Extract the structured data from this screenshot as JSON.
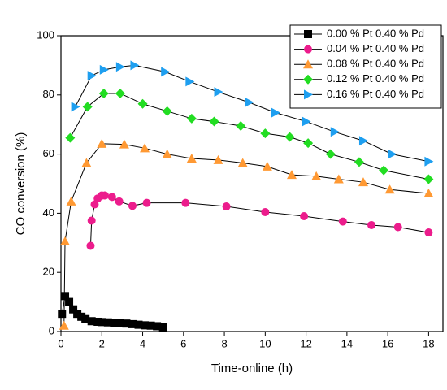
{
  "chart_data": {
    "type": "line",
    "xlabel": "Time-online (h)",
    "ylabel": "CO conversion (%)",
    "xlim": [
      0,
      18.7
    ],
    "ylim": [
      0,
      100
    ],
    "xticks": [
      0,
      2,
      4,
      6,
      8,
      10,
      12,
      14,
      16,
      18
    ],
    "yticks": [
      0,
      20,
      40,
      60,
      80,
      100
    ],
    "legend": "top-right",
    "series": [
      {
        "name": "0.00 % Pt 0.40 % Pd",
        "color": "#000000",
        "marker": "square",
        "x": [
          0.05,
          0.2,
          0.4,
          0.6,
          0.8,
          1.0,
          1.2,
          1.5,
          1.8,
          2.0,
          2.3,
          2.6,
          2.9,
          3.2,
          3.5,
          3.8,
          4.1,
          4.4,
          4.7,
          5.0
        ],
        "values": [
          6,
          12,
          10,
          7.5,
          6,
          5,
          4.2,
          3.5,
          3.3,
          3.2,
          3.1,
          3.0,
          2.9,
          2.7,
          2.5,
          2.3,
          2.1,
          2.0,
          1.8,
          1.5
        ]
      },
      {
        "name": "0.04 % Pt 0.40 % Pd",
        "color": "#ec1c8c",
        "marker": "circle",
        "x": [
          1.45,
          1.5,
          1.65,
          1.8,
          2.0,
          2.15,
          2.5,
          2.85,
          3.5,
          4.2,
          6.1,
          8.1,
          10.0,
          11.9,
          13.8,
          15.2,
          16.5,
          18.0
        ],
        "values": [
          29,
          37.5,
          43,
          45,
          46,
          46,
          45.5,
          44,
          42.5,
          43.5,
          43.5,
          42.3,
          40.4,
          39,
          37.2,
          36,
          35.3,
          33.5
        ]
      },
      {
        "name": "0.08 % Pt 0.40 % Pd",
        "color": "#ff9933",
        "marker": "triangle-up",
        "x": [
          0.15,
          0.2,
          0.5,
          1.25,
          2.0,
          3.1,
          4.1,
          5.2,
          6.4,
          7.7,
          8.9,
          10.1,
          11.3,
          12.5,
          13.6,
          14.8,
          16.1,
          18.0
        ],
        "values": [
          2,
          30.5,
          44,
          57,
          63.5,
          63.3,
          62,
          60,
          58.5,
          58,
          57,
          55.8,
          53,
          52.5,
          51.5,
          50.5,
          48,
          46.7
        ]
      },
      {
        "name": "0.12 % Pt 0.40 % Pd",
        "color": "#22dd22",
        "marker": "diamond",
        "x": [
          0.45,
          1.3,
          2.1,
          2.9,
          4.0,
          5.2,
          6.4,
          7.5,
          8.8,
          10.0,
          11.2,
          12.1,
          13.2,
          14.6,
          15.8,
          18.0
        ],
        "values": [
          65.5,
          76,
          80.5,
          80.5,
          77,
          74.5,
          72,
          71,
          69.5,
          67,
          65.8,
          63.7,
          60,
          57.3,
          54.5,
          51.5
        ]
      },
      {
        "name": "0.16 % Pt 0.40 % Pd",
        "color": "#1e9ff0",
        "marker": "triangle-right",
        "x": [
          0.7,
          1.5,
          2.1,
          2.9,
          3.6,
          5.1,
          6.3,
          7.7,
          9.2,
          10.5,
          12.0,
          13.4,
          14.8,
          16.2,
          18.0
        ],
        "values": [
          76,
          86.5,
          88.5,
          89.5,
          90,
          87.8,
          84.5,
          81,
          77.5,
          74,
          71,
          67.5,
          64.5,
          60,
          57.5
        ]
      }
    ]
  }
}
